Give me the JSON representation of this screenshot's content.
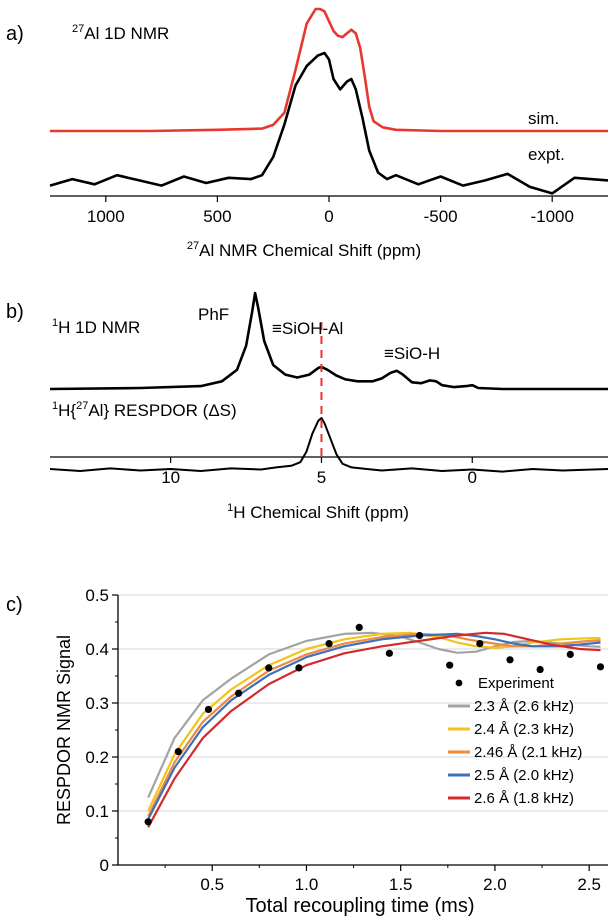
{
  "chart_data": [
    {
      "panel": "a)",
      "type": "line",
      "title_superscript": "27",
      "title_rest": "Al 1D NMR",
      "xlabel_superscript": "27",
      "xlabel_rest": "Al NMR Chemical Shift (ppm)",
      "xlim": [
        1250,
        -1250
      ],
      "x_reversed": true,
      "xticks": [
        1000,
        500,
        0,
        -500,
        -1000
      ],
      "xtick_labels": [
        "1000",
        "500",
        "0",
        "-500",
        "-1000"
      ],
      "series": [
        {
          "name": "sim.",
          "color": "#e8372e",
          "x": [
            1250,
            800,
            500,
            300,
            250,
            200,
            150,
            100,
            60,
            40,
            20,
            0,
            -20,
            -40,
            -60,
            -80,
            -100,
            -120,
            -140,
            -160,
            -180,
            -200,
            -240,
            -300,
            -500,
            -800,
            -1250
          ],
          "y": [
            0,
            0,
            0.01,
            0.02,
            0.05,
            0.15,
            0.5,
            0.88,
            1.0,
            1.0,
            0.98,
            0.9,
            0.82,
            0.78,
            0.77,
            0.8,
            0.83,
            0.8,
            0.68,
            0.45,
            0.2,
            0.08,
            0.03,
            0.01,
            0,
            0,
            0
          ]
        },
        {
          "name": "expt.",
          "color": "#000000",
          "x": [
            1250,
            1150,
            1050,
            950,
            850,
            750,
            650,
            550,
            450,
            350,
            300,
            250,
            200,
            150,
            100,
            50,
            20,
            0,
            -20,
            -50,
            -80,
            -100,
            -120,
            -150,
            -180,
            -220,
            -260,
            -300,
            -400,
            -500,
            -600,
            -700,
            -800,
            -900,
            -1000,
            -1100,
            -1250
          ],
          "y": [
            -0.02,
            0.03,
            -0.01,
            0.06,
            0.02,
            -0.02,
            0.05,
            0.0,
            0.04,
            0.03,
            0.06,
            0.2,
            0.45,
            0.75,
            0.9,
            0.98,
            1.0,
            0.95,
            0.8,
            0.72,
            0.78,
            0.8,
            0.72,
            0.5,
            0.25,
            0.08,
            0.03,
            0.06,
            -0.01,
            0.05,
            -0.02,
            0.02,
            0.07,
            -0.03,
            -0.08,
            0.04,
            0.02
          ]
        }
      ]
    },
    {
      "panel": "b)",
      "type": "line",
      "xlabel_superscript": "1",
      "xlabel_rest": "H Chemical Shift (ppm)",
      "xlim": [
        14,
        -4.5
      ],
      "x_reversed": true,
      "xticks": [
        10,
        5,
        0
      ],
      "xtick_labels": [
        "10",
        "5",
        "0"
      ],
      "marker_line_x": 5,
      "peak_labels": [
        "PhF",
        "≡SiOH-Al",
        "≡SiO-H"
      ],
      "series": [
        {
          "name_superscript": "1",
          "name_rest": "H 1D NMR",
          "color": "#000000",
          "x": [
            14,
            11,
            9,
            8.3,
            7.8,
            7.5,
            7.3,
            7.2,
            7.1,
            6.9,
            6.6,
            6.2,
            5.8,
            5.4,
            5.1,
            5.0,
            4.8,
            4.5,
            4.2,
            3.8,
            3.3,
            3.0,
            2.7,
            2.5,
            2.3,
            2.0,
            1.7,
            1.4,
            1.2,
            1.0,
            0.6,
            0.2,
            0.0,
            -0.2,
            -1.0,
            -2.0,
            -4.5
          ],
          "y": [
            0,
            0.01,
            0.03,
            0.08,
            0.2,
            0.45,
            0.8,
            1.0,
            0.85,
            0.5,
            0.25,
            0.15,
            0.12,
            0.15,
            0.22,
            0.23,
            0.2,
            0.14,
            0.1,
            0.08,
            0.08,
            0.11,
            0.17,
            0.19,
            0.15,
            0.07,
            0.06,
            0.09,
            0.08,
            0.04,
            0.02,
            0.03,
            0.04,
            0.01,
            0,
            0,
            0
          ]
        },
        {
          "name_superscript_1": "1",
          "name_mid_1": "H{",
          "name_superscript_2": "27",
          "name_rest_2": "Al} RESPDOR (ΔS)",
          "color": "#000000",
          "x": [
            14,
            13,
            12,
            11,
            10,
            9,
            8,
            7,
            6.5,
            6.0,
            5.7,
            5.5,
            5.3,
            5.1,
            5.0,
            4.9,
            4.7,
            4.5,
            4.3,
            4.0,
            3.5,
            3.0,
            2.0,
            1.0,
            0.0,
            -1.0,
            -2.0,
            -3.0,
            -4.5
          ],
          "y": [
            0.02,
            -0.02,
            0.03,
            -0.01,
            0.02,
            -0.02,
            0.03,
            0.01,
            0.05,
            0.08,
            0.15,
            0.35,
            0.7,
            0.95,
            1.0,
            0.9,
            0.6,
            0.3,
            0.12,
            0.05,
            0.02,
            -0.01,
            0.03,
            -0.02,
            0.01,
            -0.03,
            0.02,
            -0.01,
            0.02
          ]
        }
      ]
    },
    {
      "panel": "c)",
      "type": "line",
      "xlabel": "Total recoupling time (ms)",
      "ylabel": "RESPDOR NMR Signal",
      "xlim": [
        0,
        2.6
      ],
      "ylim": [
        0,
        0.5
      ],
      "xticks": [
        0.5,
        1.0,
        1.5,
        2.0,
        2.5
      ],
      "xtick_labels": [
        "0.5",
        "1.0",
        "1.5",
        "2.0",
        "2.5"
      ],
      "yticks": [
        0,
        0.1,
        0.2,
        0.3,
        0.4,
        0.5
      ],
      "ytick_labels": [
        "0",
        "0.1",
        "0.2",
        "0.3",
        "0.4",
        "0.5"
      ],
      "grid": true,
      "legend": "bottom-right",
      "scatter": {
        "name": "Experiment",
        "x": [
          0.16,
          0.32,
          0.48,
          0.64,
          0.8,
          0.96,
          1.12,
          1.28,
          1.44,
          1.6,
          1.76,
          1.92,
          2.08,
          2.24,
          2.4,
          2.56
        ],
        "y": [
          0.08,
          0.21,
          0.288,
          0.318,
          0.365,
          0.365,
          0.41,
          0.44,
          0.392,
          0.425,
          0.37,
          0.41,
          0.38,
          0.362,
          0.39,
          0.367
        ]
      },
      "series": [
        {
          "name": "2.3 Å (2.6 kHz)",
          "color": "#a3a3a3",
          "x": [
            0.16,
            0.3,
            0.45,
            0.6,
            0.8,
            1.0,
            1.2,
            1.35,
            1.5,
            1.6,
            1.7,
            1.8,
            1.9,
            2.0,
            2.1,
            2.2,
            2.35,
            2.5,
            2.56
          ],
          "y": [
            0.125,
            0.235,
            0.305,
            0.345,
            0.39,
            0.415,
            0.428,
            0.43,
            0.423,
            0.412,
            0.4,
            0.393,
            0.395,
            0.405,
            0.413,
            0.415,
            0.41,
            0.405,
            0.404
          ]
        },
        {
          "name": "2.4 Å (2.3 kHz)",
          "color": "#f2c318",
          "x": [
            0.16,
            0.3,
            0.45,
            0.6,
            0.8,
            1.0,
            1.2,
            1.4,
            1.55,
            1.7,
            1.8,
            1.9,
            2.0,
            2.1,
            2.2,
            2.35,
            2.5,
            2.56
          ],
          "y": [
            0.1,
            0.205,
            0.28,
            0.325,
            0.37,
            0.4,
            0.418,
            0.428,
            0.43,
            0.422,
            0.412,
            0.405,
            0.402,
            0.405,
            0.412,
            0.418,
            0.42,
            0.42
          ]
        },
        {
          "name": "2.46 Å (2.1 kHz)",
          "color": "#ef8a3a",
          "x": [
            0.16,
            0.3,
            0.45,
            0.6,
            0.8,
            1.0,
            1.2,
            1.4,
            1.6,
            1.75,
            1.9,
            2.0,
            2.1,
            2.2,
            2.35,
            2.5,
            2.56
          ],
          "y": [
            0.09,
            0.19,
            0.265,
            0.312,
            0.36,
            0.39,
            0.41,
            0.422,
            0.428,
            0.425,
            0.415,
            0.41,
            0.405,
            0.405,
            0.41,
            0.415,
            0.416
          ]
        },
        {
          "name": "2.5 Å (2.0 kHz)",
          "color": "#3f6fbf",
          "x": [
            0.16,
            0.3,
            0.45,
            0.6,
            0.8,
            1.0,
            1.2,
            1.4,
            1.6,
            1.8,
            1.9,
            2.0,
            2.1,
            2.2,
            2.35,
            2.5,
            2.56
          ],
          "y": [
            0.085,
            0.18,
            0.255,
            0.305,
            0.352,
            0.385,
            0.405,
            0.418,
            0.425,
            0.428,
            0.424,
            0.418,
            0.41,
            0.405,
            0.405,
            0.41,
            0.412
          ]
        },
        {
          "name": "2.6 Å (1.8 kHz)",
          "color": "#d42a2a",
          "x": [
            0.16,
            0.3,
            0.45,
            0.6,
            0.8,
            1.0,
            1.2,
            1.4,
            1.6,
            1.8,
            1.95,
            2.05,
            2.15,
            2.3,
            2.45,
            2.56
          ],
          "y": [
            0.07,
            0.16,
            0.235,
            0.285,
            0.335,
            0.37,
            0.392,
            0.405,
            0.415,
            0.425,
            0.43,
            0.428,
            0.42,
            0.408,
            0.4,
            0.398
          ]
        }
      ]
    }
  ]
}
